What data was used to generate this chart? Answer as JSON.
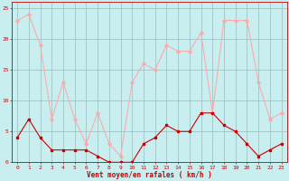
{
  "x": [
    0,
    1,
    2,
    3,
    4,
    5,
    6,
    7,
    8,
    9,
    10,
    11,
    12,
    13,
    14,
    15,
    16,
    17,
    18,
    19,
    20,
    21,
    22,
    23
  ],
  "vent_moyen": [
    4,
    7,
    4,
    2,
    2,
    2,
    2,
    1,
    0,
    0,
    0,
    3,
    4,
    6,
    5,
    5,
    8,
    8,
    6,
    5,
    3,
    1,
    2,
    3
  ],
  "en_rafales": [
    23,
    24,
    19,
    7,
    13,
    7,
    3,
    8,
    3,
    1,
    13,
    16,
    15,
    19,
    18,
    18,
    21,
    8,
    23,
    23,
    23,
    13,
    7,
    8
  ],
  "color_moyen": "#cc0000",
  "color_rafales": "#ffaaaa",
  "background_color": "#c8eef0",
  "grid_color": "#99bbbb",
  "xlabel": "Vent moyen/en rafales ( km/h )",
  "ylim": [
    0,
    26
  ],
  "yticks": [
    0,
    5,
    10,
    15,
    20,
    25
  ],
  "xticks": [
    0,
    1,
    2,
    3,
    4,
    5,
    6,
    7,
    8,
    9,
    10,
    11,
    12,
    13,
    14,
    15,
    16,
    17,
    18,
    19,
    20,
    21,
    22,
    23
  ],
  "figsize": [
    3.2,
    2.0
  ],
  "dpi": 100
}
